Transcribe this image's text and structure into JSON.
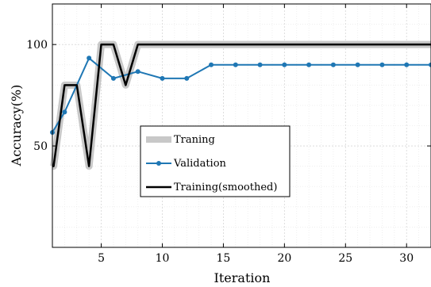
{
  "chart_data": {
    "type": "line",
    "xlabel": "Iteration",
    "ylabel": "Accuracy(%)",
    "xlim": [
      1,
      32
    ],
    "ylim": [
      0,
      120
    ],
    "xticks": [
      5,
      10,
      15,
      20,
      25,
      30
    ],
    "yticks": [
      50,
      100
    ],
    "grid": true,
    "minor_grid": true,
    "legend_position": "center-left",
    "series": [
      {
        "name": "Traning",
        "color": "#c8c8c8",
        "marker": "none",
        "x": [
          1,
          1.1,
          2,
          3,
          4,
          5,
          6,
          7,
          8,
          32
        ],
        "y": [
          40,
          40,
          80,
          80,
          40,
          100,
          100,
          80,
          100,
          100
        ]
      },
      {
        "name": "Validation",
        "color": "#1f77b4",
        "marker": "dot",
        "x": [
          1,
          2,
          4,
          6,
          8,
          10,
          12,
          14,
          16,
          18,
          20,
          22,
          24,
          26,
          28,
          30,
          32
        ],
        "y": [
          56.7,
          66.7,
          93.3,
          83.3,
          86.7,
          83.3,
          83.3,
          90,
          90,
          90,
          90,
          90,
          90,
          90,
          90,
          90,
          90
        ]
      },
      {
        "name": "Training(smoothed)",
        "color": "#000000",
        "marker": "none",
        "x": [
          1,
          1.1,
          2,
          3,
          4,
          5,
          6,
          7,
          8,
          32
        ],
        "y": [
          40,
          40,
          80,
          80,
          40,
          100,
          100,
          80,
          100,
          100
        ]
      }
    ]
  }
}
